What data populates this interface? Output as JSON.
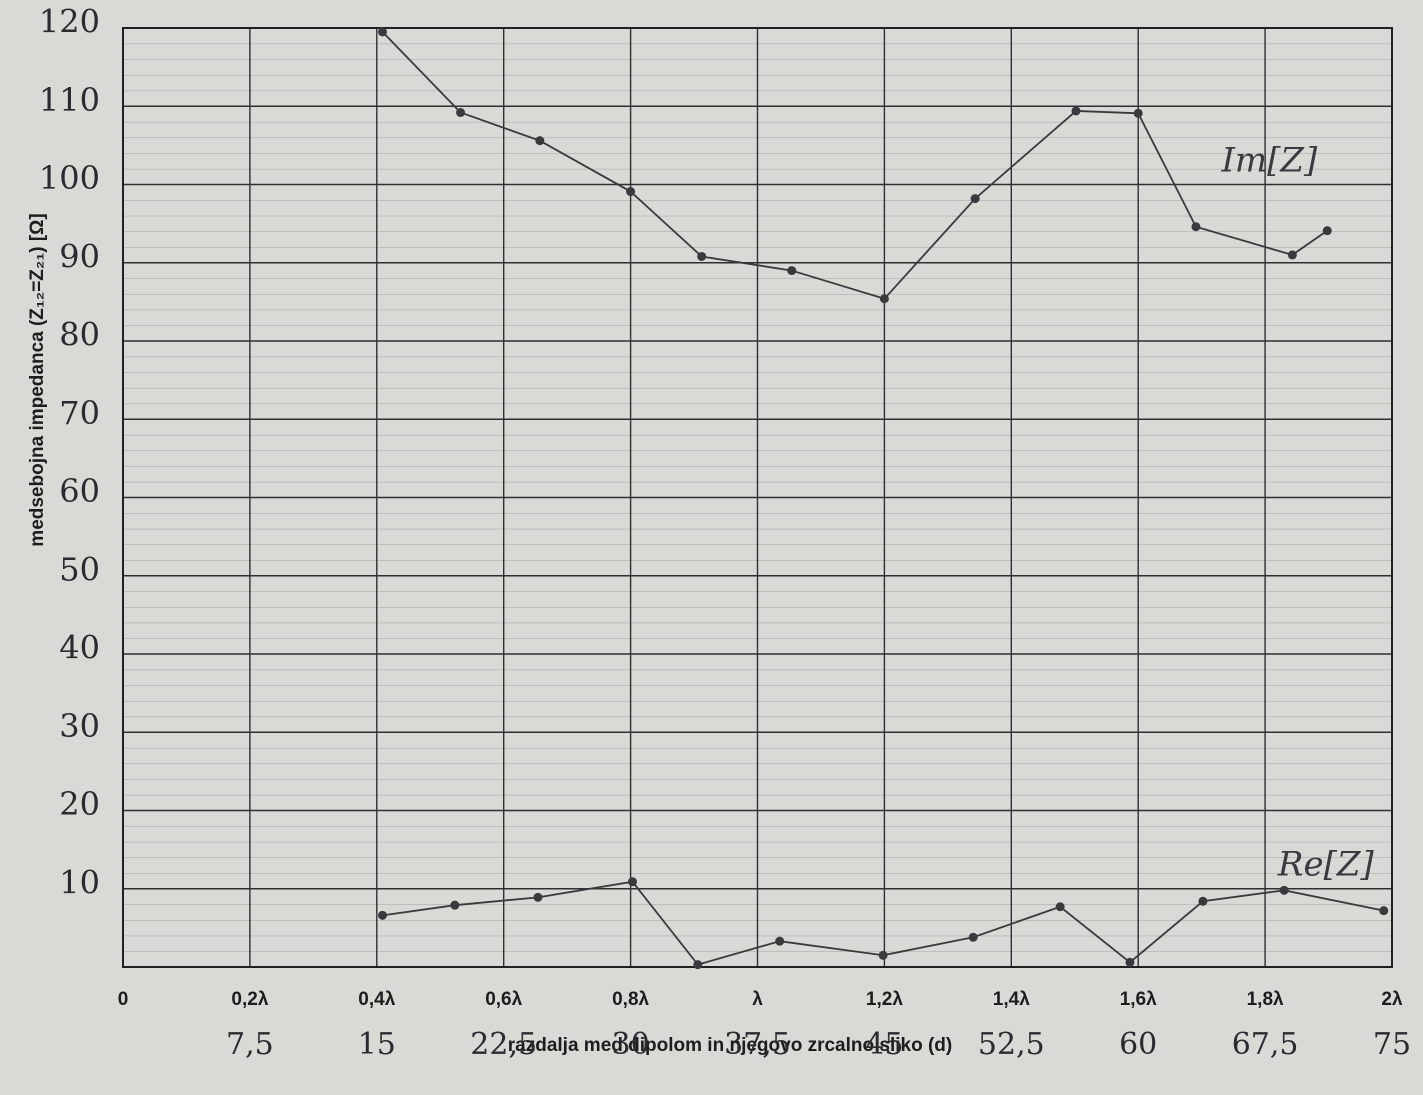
{
  "chart_data": {
    "type": "line",
    "xlabel": "razdalja med dipolom in njegovo zrcalno sliko (d)",
    "ylabel": "medsebojna impedanca (Z₁₂=Z₂₁) [Ω]",
    "xlim": [
      0,
      2
    ],
    "ylim": [
      0,
      120
    ],
    "xticks": [
      0,
      {
        "value": 0.2,
        "label": "0,2λ"
      },
      {
        "value": 0.4,
        "label": "0,4λ"
      },
      {
        "value": 0.6,
        "label": "0,6λ"
      },
      {
        "value": 0.8,
        "label": "0,8λ"
      },
      {
        "value": 1,
        "label": "λ"
      },
      {
        "value": 1.2,
        "label": "1,2λ"
      },
      {
        "value": 1.4,
        "label": "1,4λ"
      },
      {
        "value": 1.6,
        "label": "1,6λ"
      },
      {
        "value": 1.8,
        "label": "1,8λ"
      },
      {
        "value": 2,
        "label": "2λ"
      }
    ],
    "x2lim": [
      0,
      75
    ],
    "x2ticks": [
      {
        "value": 7.5,
        "label": "7,5"
      },
      15,
      {
        "value": 22.5,
        "label": "22,5"
      },
      30,
      {
        "value": 37.5,
        "label": "37,5"
      },
      45,
      {
        "value": 52.5,
        "label": "52,5"
      },
      60,
      {
        "value": 67.5,
        "label": "67,5"
      },
      75
    ],
    "yticks": [
      10,
      20,
      30,
      40,
      50,
      60,
      70,
      80,
      90,
      100,
      110,
      120
    ],
    "grid": true,
    "series": [
      {
        "name": "Im[Z]",
        "color": "#3a3a3e",
        "x": [
          0.409,
          0.532,
          0.657,
          0.8,
          0.912,
          1.054,
          1.2,
          1.343,
          1.502,
          1.6,
          1.691,
          1.843,
          1.898
        ],
        "values": [
          119.5,
          109.2,
          105.6,
          99.1,
          90.8,
          89,
          85.4,
          98.2,
          109.4,
          109.1,
          94.6,
          91,
          94.1
        ]
      },
      {
        "name": "Re[Z]",
        "color": "#3a3a3e",
        "x": [
          0.409,
          0.523,
          0.654,
          0.803,
          0.906,
          1.035,
          1.198,
          1.34,
          1.477,
          1.587,
          1.702,
          1.83,
          1.987
        ],
        "values": [
          6.6,
          7.9,
          8.9,
          10.9,
          0.3,
          3.3,
          1.5,
          3.8,
          7.7,
          0.6,
          8.4,
          9.8,
          7.2
        ]
      }
    ]
  }
}
